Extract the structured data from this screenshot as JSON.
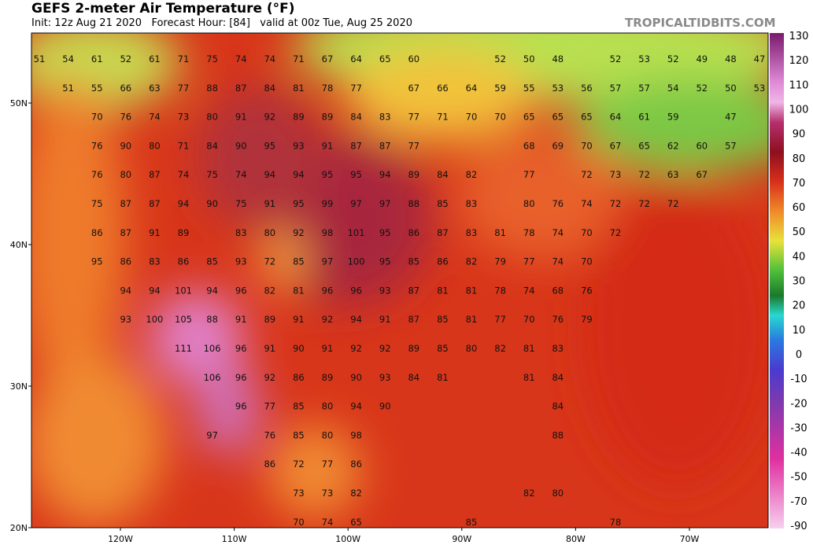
{
  "header": {
    "title": "GEFS 2-meter Air Temperature (°F)",
    "subtitle": "Init: 12z Aug 21 2020   Forecast Hour: [84]   valid at 00z Tue, Aug 25 2020",
    "credit": "TROPICALTIDBITS.COM"
  },
  "map": {
    "latitude_labels": [
      "50N",
      "40N",
      "30N",
      "20N"
    ],
    "longitude_labels": [
      "120W",
      "110W",
      "100W",
      "90W",
      "80W",
      "70W"
    ],
    "temperature_grid": [
      [
        51,
        54,
        61,
        52,
        61,
        71,
        75,
        74,
        74,
        71,
        67,
        64,
        65,
        60,
        null,
        null,
        52,
        50,
        48,
        null,
        52,
        53,
        52,
        49,
        48,
        47
      ],
      [
        null,
        51,
        55,
        66,
        63,
        77,
        88,
        87,
        84,
        81,
        78,
        77,
        null,
        67,
        66,
        64,
        59,
        55,
        53,
        56,
        57,
        57,
        54,
        52,
        50,
        53
      ],
      [
        null,
        null,
        70,
        76,
        74,
        73,
        80,
        91,
        92,
        89,
        89,
        84,
        83,
        77,
        71,
        70,
        70,
        65,
        65,
        65,
        64,
        61,
        59,
        null,
        47,
        null
      ],
      [
        null,
        null,
        76,
        90,
        80,
        71,
        84,
        90,
        95,
        93,
        91,
        87,
        87,
        77,
        null,
        null,
        null,
        68,
        69,
        70,
        67,
        65,
        62,
        60,
        57,
        null
      ],
      [
        null,
        null,
        76,
        80,
        87,
        74,
        75,
        74,
        94,
        94,
        95,
        95,
        94,
        89,
        84,
        82,
        null,
        77,
        null,
        72,
        73,
        72,
        63,
        67,
        null,
        null
      ],
      [
        null,
        null,
        75,
        87,
        87,
        94,
        90,
        75,
        91,
        95,
        99,
        97,
        97,
        88,
        85,
        83,
        null,
        80,
        76,
        74,
        72,
        72,
        72,
        null,
        null,
        null
      ],
      [
        null,
        null,
        86,
        87,
        91,
        89,
        null,
        83,
        80,
        92,
        98,
        101,
        95,
        86,
        87,
        83,
        81,
        78,
        74,
        70,
        72,
        null,
        null,
        null,
        null,
        null
      ],
      [
        null,
        null,
        95,
        86,
        83,
        86,
        85,
        93,
        72,
        85,
        97,
        100,
        95,
        85,
        86,
        82,
        79,
        77,
        74,
        70,
        null,
        null,
        null,
        null,
        null,
        null
      ],
      [
        null,
        null,
        null,
        94,
        94,
        101,
        94,
        96,
        82,
        81,
        96,
        96,
        93,
        87,
        81,
        81,
        78,
        74,
        68,
        76,
        null,
        null,
        null,
        null,
        null,
        null
      ],
      [
        null,
        null,
        null,
        93,
        100,
        105,
        88,
        91,
        89,
        91,
        92,
        94,
        91,
        87,
        85,
        81,
        77,
        70,
        76,
        79,
        null,
        null,
        null,
        null,
        null,
        null
      ],
      [
        null,
        null,
        null,
        null,
        null,
        111,
        106,
        96,
        91,
        90,
        91,
        92,
        92,
        89,
        85,
        80,
        82,
        81,
        83,
        null,
        null,
        null,
        null,
        null,
        null,
        null
      ],
      [
        null,
        null,
        null,
        null,
        null,
        null,
        106,
        96,
        92,
        86,
        89,
        90,
        93,
        84,
        81,
        null,
        null,
        81,
        84,
        null,
        null,
        null,
        null,
        null,
        null,
        null
      ],
      [
        null,
        null,
        null,
        null,
        null,
        null,
        null,
        96,
        77,
        85,
        80,
        94,
        90,
        null,
        null,
        null,
        null,
        null,
        84,
        null,
        null,
        null,
        null,
        null,
        null,
        null
      ],
      [
        null,
        null,
        null,
        null,
        null,
        null,
        97,
        null,
        76,
        85,
        80,
        98,
        null,
        null,
        null,
        null,
        null,
        null,
        88,
        null,
        null,
        null,
        null,
        null,
        null,
        null
      ],
      [
        null,
        null,
        null,
        null,
        null,
        null,
        null,
        null,
        86,
        72,
        77,
        86,
        null,
        null,
        null,
        null,
        null,
        null,
        null,
        null,
        null,
        null,
        null,
        null,
        null,
        null
      ],
      [
        null,
        null,
        null,
        null,
        null,
        null,
        null,
        null,
        null,
        73,
        73,
        82,
        null,
        null,
        null,
        null,
        null,
        82,
        80,
        null,
        null,
        null,
        null,
        null,
        null,
        null
      ],
      [
        null,
        null,
        null,
        null,
        null,
        null,
        null,
        null,
        null,
        70,
        74,
        65,
        null,
        null,
        null,
        85,
        null,
        null,
        null,
        null,
        78,
        null,
        null,
        null,
        null,
        null
      ]
    ]
  },
  "colorbar": {
    "labels": [
      130,
      120,
      110,
      100,
      90,
      80,
      70,
      60,
      50,
      40,
      30,
      20,
      10,
      0,
      -10,
      -20,
      -30,
      -40,
      -50,
      -70,
      -90
    ]
  }
}
